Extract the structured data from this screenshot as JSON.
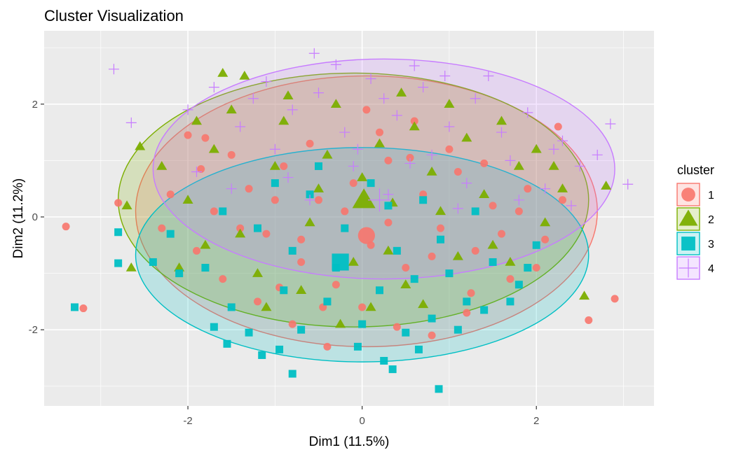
{
  "chart_data": {
    "type": "scatter",
    "title": "Cluster Visualization",
    "xlabel": "Dim1 (11.5%)",
    "ylabel": "Dim2 (11.2%)",
    "xlim": [
      -3.65,
      3.35
    ],
    "ylim": [
      -3.35,
      3.3
    ],
    "x_ticks": [
      -2,
      0,
      2
    ],
    "y_ticks": [
      -2,
      0,
      2
    ],
    "x_tick_labels": [
      "-2",
      "0",
      "2"
    ],
    "y_tick_labels": [
      "-2",
      "0",
      "2"
    ],
    "grid": true,
    "legend": {
      "title": "cluster",
      "position": "right",
      "entries": [
        {
          "label": "1",
          "shape": "circle"
        },
        {
          "label": "2",
          "shape": "triangle"
        },
        {
          "label": "3",
          "shape": "square"
        },
        {
          "label": "4",
          "shape": "plus"
        }
      ]
    },
    "series": [
      {
        "name": "1",
        "color": "#F8766D",
        "shape": "circle",
        "ellipse": {
          "cx": 0.05,
          "cy": 0.1,
          "rx": 2.65,
          "ry": 2.4
        },
        "centroid": [
          0.05,
          -0.33
        ],
        "points": [
          [
            -3.4,
            -0.17
          ],
          [
            -3.2,
            -1.62
          ],
          [
            -2.8,
            0.25
          ],
          [
            2.6,
            -1.83
          ],
          [
            2.9,
            -1.45
          ],
          [
            2.25,
            1.6
          ],
          [
            -2.0,
            1.45
          ],
          [
            -1.8,
            1.4
          ],
          [
            -1.5,
            1.1
          ],
          [
            -1.3,
            0.5
          ],
          [
            -1.1,
            -0.3
          ],
          [
            -0.9,
            0.9
          ],
          [
            -0.7,
            -0.8
          ],
          [
            -0.5,
            0.3
          ],
          [
            -0.3,
            -1.2
          ],
          [
            -0.1,
            0.6
          ],
          [
            0.1,
            -0.5
          ],
          [
            0.3,
            1.0
          ],
          [
            0.5,
            -0.9
          ],
          [
            0.7,
            0.4
          ],
          [
            0.9,
            -0.2
          ],
          [
            1.1,
            0.8
          ],
          [
            1.3,
            -0.6
          ],
          [
            1.5,
            0.2
          ],
          [
            1.7,
            -1.1
          ],
          [
            1.9,
            0.5
          ],
          [
            2.1,
            -0.4
          ],
          [
            -1.9,
            -0.6
          ],
          [
            -1.6,
            -1.1
          ],
          [
            -1.2,
            -1.5
          ],
          [
            -0.8,
            -1.9
          ],
          [
            -0.4,
            -2.3
          ],
          [
            0.0,
            -1.6
          ],
          [
            0.4,
            -1.95
          ],
          [
            0.8,
            -2.1
          ],
          [
            1.2,
            -1.7
          ],
          [
            -2.2,
            0.4
          ],
          [
            -1.7,
            0.1
          ],
          [
            -1.0,
            0.3
          ],
          [
            -0.6,
            1.3
          ],
          [
            0.2,
            1.5
          ],
          [
            0.6,
            1.7
          ],
          [
            1.0,
            1.2
          ],
          [
            1.4,
            0.95
          ],
          [
            1.8,
            0.1
          ],
          [
            2.0,
            -0.9
          ],
          [
            -0.2,
            0.1
          ],
          [
            0.3,
            -0.1
          ],
          [
            -0.7,
            -0.4
          ],
          [
            0.8,
            -0.7
          ],
          [
            -1.4,
            -0.2
          ],
          [
            1.6,
            -0.3
          ],
          [
            -0.45,
            -1.6
          ],
          [
            0.55,
            1.05
          ],
          [
            -2.3,
            -0.2
          ],
          [
            2.3,
            0.3
          ],
          [
            -1.85,
            0.85
          ],
          [
            1.25,
            -1.35
          ],
          [
            -0.95,
            -1.25
          ],
          [
            0.05,
            1.9
          ]
        ]
      },
      {
        "name": "2",
        "color": "#7CAE00",
        "shape": "triangle",
        "ellipse": {
          "cx": -0.1,
          "cy": 0.3,
          "rx": 2.7,
          "ry": 2.25
        },
        "centroid": [
          0.02,
          0.3
        ],
        "points": [
          [
            -2.55,
            1.25
          ],
          [
            -2.65,
            -0.9
          ],
          [
            -2.7,
            0.2
          ],
          [
            -1.6,
            2.55
          ],
          [
            -1.35,
            2.5
          ],
          [
            2.55,
            -1.4
          ],
          [
            2.8,
            0.55
          ],
          [
            -2.3,
            0.9
          ],
          [
            -2.0,
            0.3
          ],
          [
            -1.8,
            -0.5
          ],
          [
            -1.5,
            1.9
          ],
          [
            -1.2,
            -1.0
          ],
          [
            -0.9,
            1.7
          ],
          [
            -0.6,
            -0.1
          ],
          [
            -0.3,
            2.0
          ],
          [
            0.0,
            0.7
          ],
          [
            0.3,
            -0.6
          ],
          [
            0.6,
            1.6
          ],
          [
            0.9,
            0.1
          ],
          [
            1.2,
            1.4
          ],
          [
            1.5,
            -0.5
          ],
          [
            1.8,
            0.9
          ],
          [
            2.1,
            -0.1
          ],
          [
            2.3,
            0.5
          ],
          [
            -1.7,
            1.2
          ],
          [
            -1.4,
            -0.3
          ],
          [
            -1.0,
            0.9
          ],
          [
            -0.7,
            -1.3
          ],
          [
            -0.4,
            1.1
          ],
          [
            -0.1,
            -0.8
          ],
          [
            0.2,
            1.3
          ],
          [
            0.5,
            -1.2
          ],
          [
            0.8,
            0.8
          ],
          [
            1.1,
            -0.7
          ],
          [
            1.4,
            0.4
          ],
          [
            1.7,
            -0.8
          ],
          [
            2.0,
            1.2
          ],
          [
            -2.1,
            -0.9
          ],
          [
            -0.85,
            2.15
          ],
          [
            0.45,
            2.2
          ],
          [
            1.0,
            2.0
          ],
          [
            -1.1,
            -1.6
          ],
          [
            0.1,
            -1.6
          ],
          [
            -0.5,
            0.5
          ],
          [
            0.35,
            0.25
          ],
          [
            1.6,
            1.7
          ],
          [
            -1.9,
            1.7
          ],
          [
            2.2,
            0.9
          ],
          [
            -0.25,
            -1.9
          ],
          [
            0.7,
            -1.55
          ]
        ]
      },
      {
        "name": "3",
        "color": "#00BFC4",
        "shape": "square",
        "ellipse": {
          "cx": 0.0,
          "cy": -0.67,
          "rx": 2.6,
          "ry": 1.9
        },
        "centroid": [
          -0.25,
          -0.8
        ],
        "points": [
          [
            -3.3,
            -1.6
          ],
          [
            -2.8,
            -0.27
          ],
          [
            -2.8,
            -0.82
          ],
          [
            0.88,
            -3.05
          ],
          [
            -0.8,
            -2.78
          ],
          [
            0.25,
            -2.55
          ],
          [
            0.35,
            -2.7
          ],
          [
            -1.55,
            -2.25
          ],
          [
            -0.95,
            -2.35
          ],
          [
            -1.8,
            -0.9
          ],
          [
            -1.5,
            -1.6
          ],
          [
            -1.2,
            -0.2
          ],
          [
            -0.9,
            -1.3
          ],
          [
            -0.6,
            0.4
          ],
          [
            -0.3,
            -0.9
          ],
          [
            0.0,
            -1.9
          ],
          [
            0.3,
            0.2
          ],
          [
            0.6,
            -1.1
          ],
          [
            0.9,
            -0.4
          ],
          [
            1.2,
            -1.5
          ],
          [
            1.5,
            -0.8
          ],
          [
            1.8,
            -1.2
          ],
          [
            2.0,
            -0.5
          ],
          [
            -2.1,
            -1.0
          ],
          [
            -2.2,
            -0.3
          ],
          [
            -1.7,
            -1.95
          ],
          [
            -1.3,
            -2.05
          ],
          [
            -0.7,
            -2.0
          ],
          [
            -0.4,
            -1.5
          ],
          [
            0.2,
            -1.3
          ],
          [
            0.5,
            -2.05
          ],
          [
            0.8,
            -1.8
          ],
          [
            1.1,
            -2.0
          ],
          [
            1.4,
            -1.65
          ],
          [
            1.7,
            -1.5
          ],
          [
            -1.0,
            0.6
          ],
          [
            -0.5,
            0.9
          ],
          [
            0.1,
            0.6
          ],
          [
            0.7,
            0.3
          ],
          [
            1.3,
            0.1
          ],
          [
            -1.6,
            0.1
          ],
          [
            -0.2,
            -0.2
          ],
          [
            0.4,
            -0.6
          ],
          [
            1.0,
            -1.0
          ],
          [
            -0.8,
            -0.6
          ],
          [
            1.9,
            -0.9
          ],
          [
            -2.4,
            -0.8
          ],
          [
            -1.15,
            -2.45
          ],
          [
            0.65,
            -2.35
          ],
          [
            -0.05,
            -2.3
          ]
        ]
      },
      {
        "name": "4",
        "color": "#C77CFF",
        "shape": "plus",
        "ellipse": {
          "cx": 0.25,
          "cy": 0.85,
          "rx": 2.65,
          "ry": 1.95
        },
        "centroid": [
          0.2,
          0.3
        ],
        "points": [
          [
            -2.85,
            2.62
          ],
          [
            -2.65,
            1.67
          ],
          [
            3.05,
            0.58
          ],
          [
            2.85,
            1.65
          ],
          [
            -0.55,
            2.9
          ],
          [
            0.6,
            2.68
          ],
          [
            2.3,
            1.35
          ],
          [
            2.7,
            1.1
          ],
          [
            -2.0,
            1.9
          ],
          [
            -1.7,
            2.3
          ],
          [
            -1.4,
            1.6
          ],
          [
            -1.1,
            2.4
          ],
          [
            -0.8,
            1.9
          ],
          [
            -0.5,
            2.2
          ],
          [
            -0.2,
            1.5
          ],
          [
            0.1,
            2.45
          ],
          [
            0.4,
            1.8
          ],
          [
            0.7,
            2.3
          ],
          [
            1.0,
            1.6
          ],
          [
            1.3,
            2.1
          ],
          [
            1.6,
            1.5
          ],
          [
            1.9,
            1.85
          ],
          [
            2.2,
            1.2
          ],
          [
            2.5,
            0.9
          ],
          [
            -1.9,
            0.8
          ],
          [
            -1.5,
            0.5
          ],
          [
            -1.0,
            1.2
          ],
          [
            -0.6,
            0.3
          ],
          [
            -0.1,
            0.9
          ],
          [
            0.3,
            0.4
          ],
          [
            0.8,
            1.1
          ],
          [
            1.2,
            0.6
          ],
          [
            1.7,
            1.0
          ],
          [
            2.1,
            0.5
          ],
          [
            -0.3,
            2.7
          ],
          [
            0.25,
            2.1
          ],
          [
            1.45,
            2.5
          ],
          [
            -1.25,
            2.1
          ],
          [
            0.95,
            2.5
          ],
          [
            1.8,
            0.3
          ],
          [
            -0.85,
            0.7
          ],
          [
            0.55,
            0.95
          ],
          [
            2.4,
            0.2
          ],
          [
            -0.05,
            1.2
          ],
          [
            1.1,
            0.15
          ]
        ]
      }
    ]
  }
}
